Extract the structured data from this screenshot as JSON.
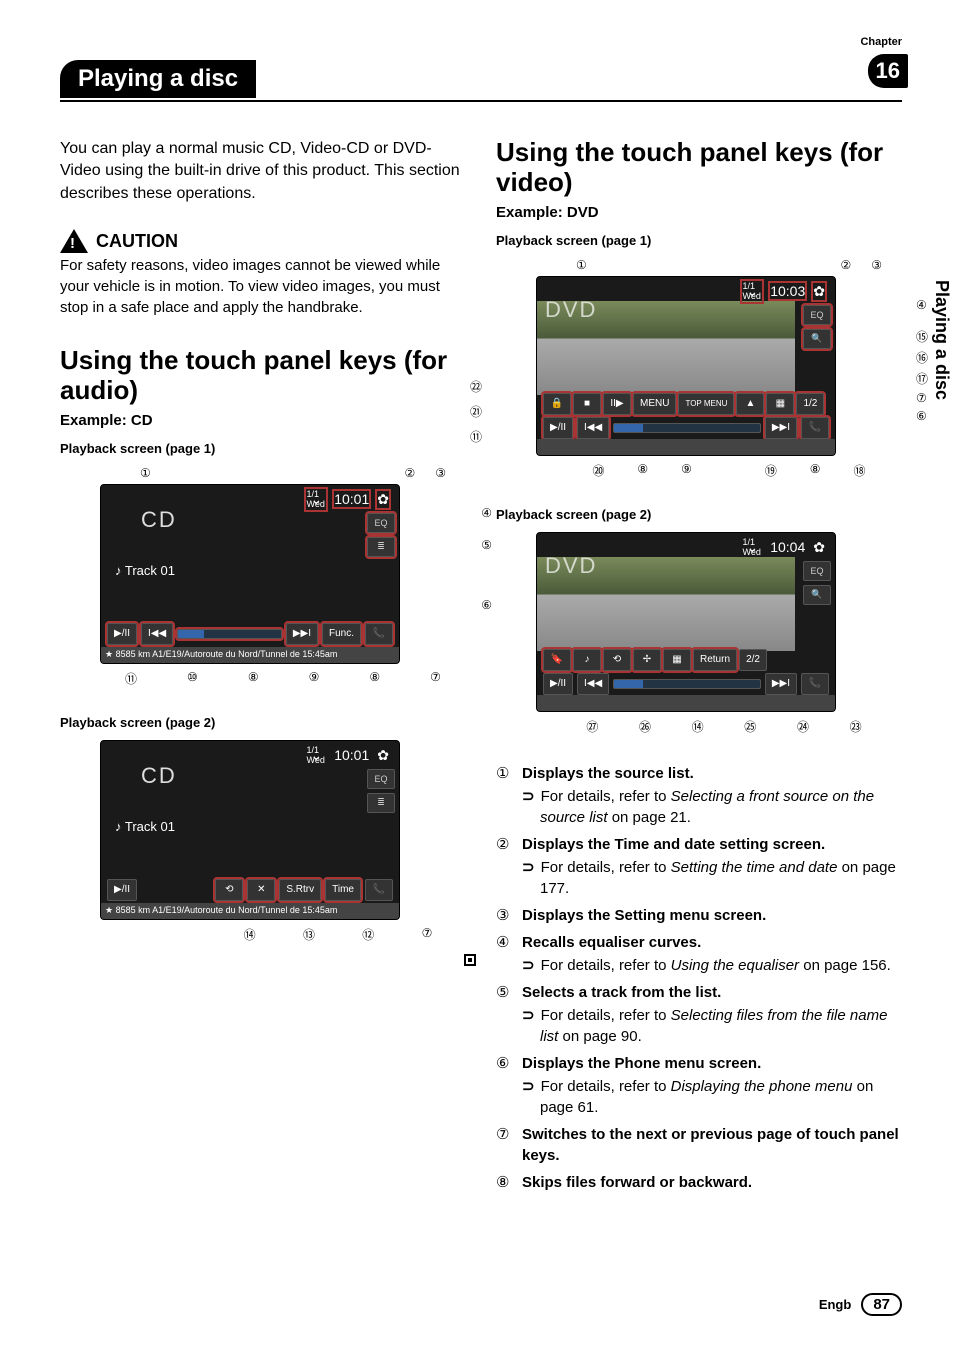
{
  "chapter_label": "Chapter",
  "chapter_num": "16",
  "header_title": "Playing a disc",
  "side_tab": "Playing a disc",
  "intro": "You can play a normal music CD, Video-CD or DVD-Video using the built-in drive of this product. This section describes these operations.",
  "caution_head": "CAUTION",
  "caution_text": "For safety reasons, video images cannot be viewed while your vehicle is in motion. To view video images, you must stop in a safe place and apply the handbrake.",
  "audio_section": "Using the touch panel keys (for audio)",
  "example_cd": "Example: CD",
  "pb_p1": "Playback screen (page 1)",
  "pb_p2": "Playback screen (page 2)",
  "cd_screen1": {
    "clock": "10:01",
    "prefrac": "1/1\nWed",
    "logo": "CD",
    "track": "♪ Track 01",
    "side": [
      "EQ",
      "≣"
    ],
    "buttons": [
      "▶/II",
      "I◀◀",
      "",
      "▶▶I",
      "Func.",
      "📞"
    ],
    "nav": "★ 8585 km A1/E19/Autoroute du Nord/Tunnel de 15:45am",
    "top_callouts": [
      "①",
      "②",
      "③"
    ],
    "right_callouts": [
      "④",
      "⑤",
      "⑥"
    ],
    "bottom_callouts": [
      "⑪",
      "⑩",
      "⑧",
      "⑨",
      "⑧",
      "⑦"
    ]
  },
  "cd_screen2": {
    "clock": "10:01",
    "prefrac": "1/1\nWed",
    "logo": "CD",
    "track": "♪ Track 01",
    "side": [
      "EQ",
      "≣"
    ],
    "buttons": [
      "▶/II",
      "",
      "⟲",
      "✕",
      "S.Rtrv",
      "Time",
      "📞"
    ],
    "nav": "★ 8585 km A1/E19/Autoroute du Nord/Tunnel de 15:45am",
    "bottom_callouts": [
      "⑭",
      "⑬",
      "⑫",
      "⑦"
    ]
  },
  "video_section": "Using the touch panel keys (for video)",
  "example_dvd": "Example: DVD",
  "dvd_screen1": {
    "clock": "10:03",
    "prefrac": "1/1\nWed",
    "logo": "DVD",
    "buttons": [
      "▶/II",
      "I◀◀",
      "",
      "▶▶I",
      "📞"
    ],
    "mid_buttons": [
      "🔒",
      "■",
      "II▶",
      "MENU",
      "TOP MENU",
      "",
      "",
      "1/2"
    ],
    "top_callouts": [
      "①",
      "②",
      "③"
    ],
    "right_callouts": [
      "④",
      "⑮",
      "⑯",
      "⑰",
      "⑦",
      "⑥"
    ],
    "left_callouts": [
      "㉒",
      "㉑",
      "⑪"
    ],
    "bottom_callouts": [
      "⑳",
      "⑧",
      "⑨",
      "⑲",
      "⑧",
      "⑱"
    ]
  },
  "dvd_screen2": {
    "clock": "10:04",
    "prefrac": "1/1\nWed",
    "logo": "DVD",
    "mid_buttons": [
      "",
      "",
      "⟲",
      "",
      "",
      "Return",
      "2/2"
    ],
    "buttons": [
      "▶/II",
      "I◀◀",
      "",
      "▶▶I",
      "📞"
    ],
    "bottom_callouts": [
      "㉗",
      "㉖",
      "⑭",
      "㉕",
      "㉔",
      "㉓"
    ]
  },
  "descriptions": [
    {
      "num": "①",
      "title": "Displays the source list.",
      "ref": "For details, refer to ",
      "ital": "Selecting a front source on the source list",
      "tail": " on page 21."
    },
    {
      "num": "②",
      "title": "Displays the Time and date setting screen.",
      "ref": "For details, refer to ",
      "ital": "Setting the time and date",
      "tail": " on page 177."
    },
    {
      "num": "③",
      "title": "Displays the Setting menu screen."
    },
    {
      "num": "④",
      "title": "Recalls equaliser curves.",
      "ref": "For details, refer to ",
      "ital": "Using the equaliser",
      "tail": " on page 156."
    },
    {
      "num": "⑤",
      "title": "Selects a track from the list.",
      "ref": "For details, refer to ",
      "ital": "Selecting files from the file name list",
      "tail": " on page 90."
    },
    {
      "num": "⑥",
      "title": "Displays the Phone menu screen.",
      "ref": "For details, refer to ",
      "ital": "Displaying the phone menu",
      "tail": " on page 61."
    },
    {
      "num": "⑦",
      "title": "Switches to the next or previous page of touch panel keys."
    },
    {
      "num": "⑧",
      "title": "Skips files forward or backward."
    }
  ],
  "footer_lang": "Engb",
  "page_num": "87"
}
